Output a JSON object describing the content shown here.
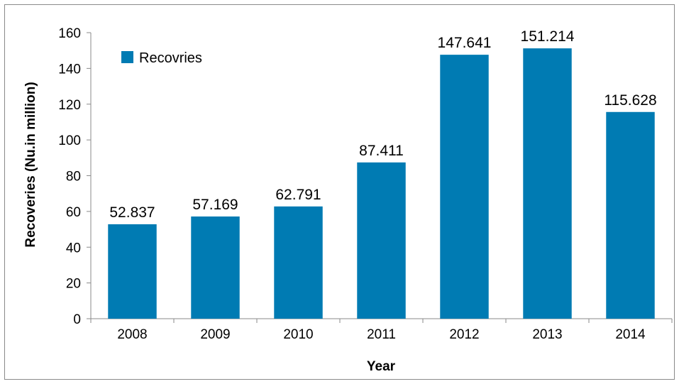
{
  "chart_data": {
    "type": "bar",
    "categories": [
      "2008",
      "2009",
      "2010",
      "2011",
      "2012",
      "2013",
      "2014"
    ],
    "series": [
      {
        "name": "Recovries",
        "values": [
          52.837,
          57.169,
          62.791,
          87.411,
          147.641,
          151.214,
          115.628
        ],
        "value_labels": [
          "52.837",
          "57.169",
          "62.791",
          "87.411",
          "147.641",
          "151.214",
          "115.628"
        ],
        "color": "#007bb3"
      }
    ],
    "title": "",
    "xlabel": "Year",
    "ylabel": "Recoveries (Nu.in million)",
    "ylim": [
      0,
      160
    ],
    "yticks": [
      0,
      20,
      40,
      60,
      80,
      100,
      120,
      140,
      160
    ],
    "grid": false,
    "legend_position": "top-left"
  }
}
